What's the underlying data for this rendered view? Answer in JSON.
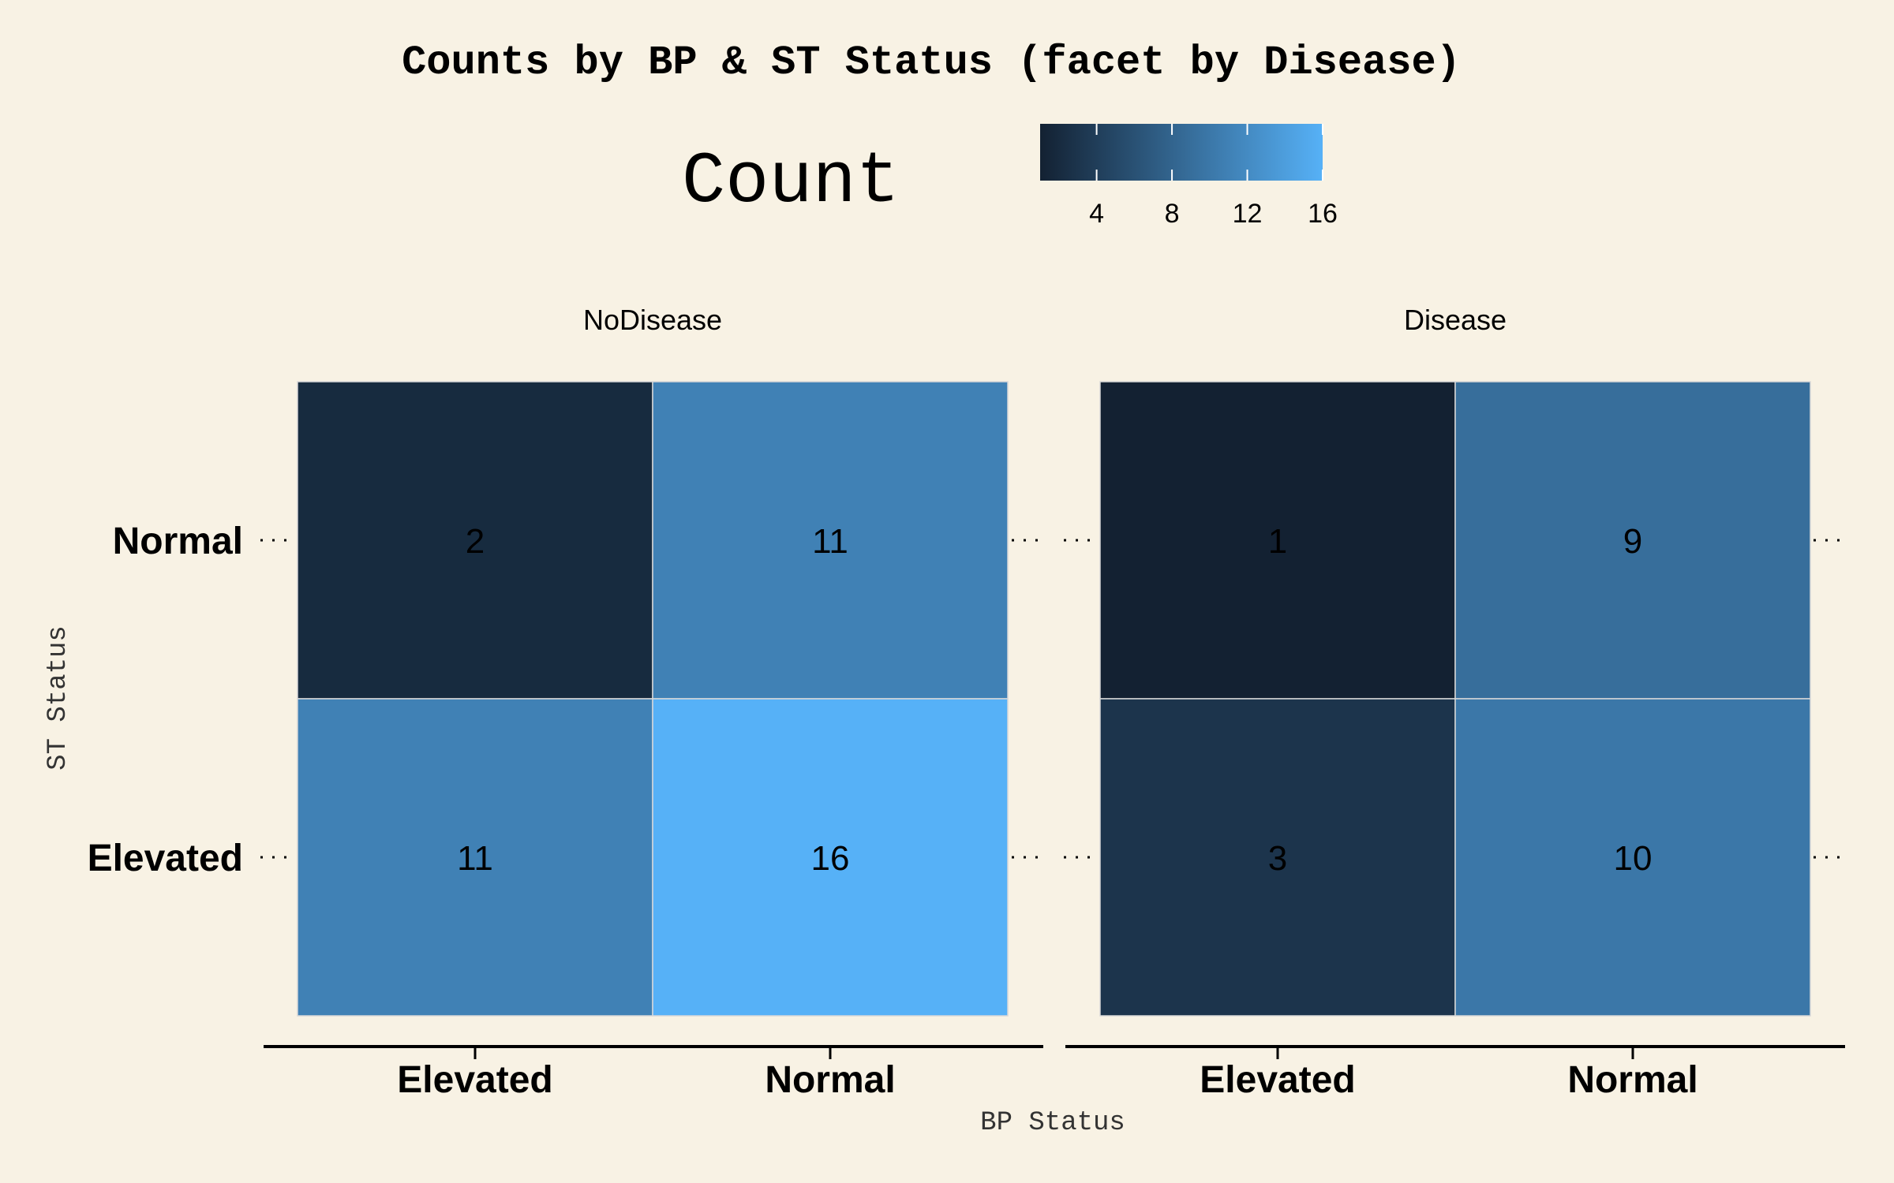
{
  "chart_data": {
    "type": "heatmap",
    "title": "Counts by BP & ST Status (facet by Disease)",
    "xlabel": "BP Status",
    "ylabel": "ST Status",
    "x_categories": [
      "Elevated",
      "Normal"
    ],
    "y_categories": [
      "Normal",
      "Elevated"
    ],
    "legend": {
      "title": "Count",
      "position": "top",
      "ticks": [
        "4",
        "8",
        "12",
        "16"
      ],
      "tick_values": [
        4,
        8,
        12,
        16
      ],
      "range": [
        1,
        16
      ],
      "colors": [
        "#132132",
        "#56b1f7"
      ]
    },
    "facets": [
      {
        "name": "NoDisease",
        "cells": [
          {
            "x": "Elevated",
            "y": "Normal",
            "value": 2
          },
          {
            "x": "Normal",
            "y": "Normal",
            "value": 11
          },
          {
            "x": "Elevated",
            "y": "Elevated",
            "value": 11
          },
          {
            "x": "Normal",
            "y": "Elevated",
            "value": 16
          }
        ]
      },
      {
        "name": "Disease",
        "cells": [
          {
            "x": "Elevated",
            "y": "Normal",
            "value": 1
          },
          {
            "x": "Normal",
            "y": "Normal",
            "value": 9
          },
          {
            "x": "Elevated",
            "y": "Elevated",
            "value": 3
          },
          {
            "x": "Normal",
            "y": "Elevated",
            "value": 10
          }
        ]
      }
    ]
  }
}
